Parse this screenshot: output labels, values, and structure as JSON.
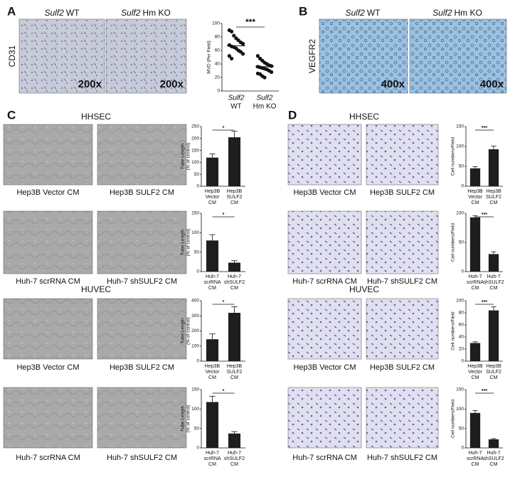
{
  "panels": {
    "A": {
      "letter": "A",
      "gene": "Sulf2",
      "columns": [
        "WT",
        "Hm KO"
      ],
      "stain": "CD31",
      "magnification": [
        "200x",
        "200x"
      ]
    },
    "B": {
      "letter": "B",
      "gene": "Sulf2",
      "columns": [
        "WT",
        "Hm KO"
      ],
      "stain": "VEGFR2",
      "magnification": [
        "400x",
        "400x"
      ]
    },
    "C": {
      "letter": "C",
      "sections": [
        "HHSEC",
        "HUVEC"
      ],
      "captions": [
        [
          "Hep3B Vector CM",
          "Hep3B SULF2 CM"
        ],
        [
          "Huh-7 scrRNA CM",
          "Huh-7 shSULF2 CM"
        ],
        [
          "Hep3B Vector CM",
          "Hep3B SULF2 CM"
        ],
        [
          "Huh-7 scrRNA CM",
          "Huh-7 shSULF2 CM"
        ]
      ]
    },
    "D": {
      "letter": "D",
      "sections": [
        "HHSEC",
        "HUVEC"
      ],
      "captions": [
        [
          "Hep3B Vector CM",
          "Hep3B SULF2 CM"
        ],
        [
          "Huh-7 scrRNA CM",
          "Huh-7 shSULF2 CM"
        ],
        [
          "Hep3B Vector CM",
          "Hep3B SULF2 CM"
        ],
        [
          "Huh-7 scrRNA CM",
          "Huh-7 shSULF2 CM"
        ]
      ]
    }
  },
  "chart_data": [
    {
      "type": "dot",
      "ylabel": [
        "MVD (Per Field)"
      ],
      "annotation": "***",
      "categories": [
        [
          "Sulf2",
          "WT"
        ],
        [
          "Sulf2",
          "Hm KO"
        ]
      ],
      "values": [
        [
          90,
          88,
          82,
          78,
          75,
          72,
          70,
          68,
          66,
          65,
          63,
          60,
          58,
          55,
          52,
          48
        ],
        [
          52,
          48,
          45,
          42,
          40,
          38,
          37,
          36,
          35,
          34,
          33,
          32,
          30,
          28,
          26,
          25,
          22,
          20
        ]
      ],
      "means": [
        67,
        36
      ],
      "ylim": [
        0,
        100
      ],
      "yticks": [
        0,
        20,
        40,
        60,
        80,
        100
      ]
    },
    {
      "type": "bar",
      "ylabel": [
        "Tube Length",
        "(% of control)"
      ],
      "annotation": "*",
      "categories": [
        [
          "Hep3B",
          "Vector",
          "CM"
        ],
        [
          "Hep3B",
          "SULF2",
          "CM"
        ]
      ],
      "values": [
        120,
        205
      ],
      "errors": [
        15,
        25
      ],
      "ylim": [
        0,
        250
      ],
      "yticks": [
        0,
        50,
        100,
        150,
        200,
        250
      ]
    },
    {
      "type": "bar",
      "ylabel": [
        "Tube Length",
        "(% of control)"
      ],
      "annotation": "*",
      "categories": [
        [
          "Huh-7",
          "scrRNA",
          "CM"
        ],
        [
          "Huh-7",
          "shSULF2",
          "CM"
        ]
      ],
      "values": [
        80,
        23
      ],
      "errors": [
        15,
        5
      ],
      "ylim": [
        0,
        150
      ],
      "yticks": [
        0,
        50,
        100,
        150
      ]
    },
    {
      "type": "bar",
      "ylabel": [
        "Tube Length",
        "(% of control)"
      ],
      "annotation": "*",
      "categories": [
        [
          "Hep3B",
          "Vector",
          "CM"
        ],
        [
          "Hep3B",
          "SULF2",
          "CM"
        ]
      ],
      "values": [
        145,
        320
      ],
      "errors": [
        35,
        40
      ],
      "ylim": [
        0,
        400
      ],
      "yticks": [
        0,
        100,
        200,
        300,
        400
      ]
    },
    {
      "type": "bar",
      "ylabel": [
        "Tube Length",
        "(% of control)"
      ],
      "annotation": "*",
      "categories": [
        [
          "Huh-7",
          "scrRNA",
          "CM"
        ],
        [
          "Huh-7",
          "shSULF2",
          "CM"
        ]
      ],
      "values": [
        118,
        37
      ],
      "errors": [
        15,
        5
      ],
      "ylim": [
        0,
        150
      ],
      "yticks": [
        0,
        50,
        100,
        150
      ]
    },
    {
      "type": "bar",
      "ylabel": [
        "Cell numbers/Field"
      ],
      "annotation": "***",
      "categories": [
        [
          "Hep3B",
          "Vector",
          "CM"
        ],
        [
          "Hep3B",
          "SULF2",
          "CM"
        ]
      ],
      "values": [
        45,
        93
      ],
      "errors": [
        4,
        8
      ],
      "ylim": [
        0,
        150
      ],
      "yticks": [
        0,
        50,
        100,
        150
      ]
    },
    {
      "type": "bar",
      "ylabel": [
        "Cell numbers/Field"
      ],
      "annotation": "***",
      "categories": [
        [
          "Huh-7",
          "scrRNA",
          "CM"
        ],
        [
          "Huh-7",
          "shSULF2",
          "CM"
        ]
      ],
      "values": [
        93,
        30
      ],
      "errors": [
        3,
        4
      ],
      "ylim": [
        0,
        100
      ],
      "yticks": [
        0,
        50,
        100
      ]
    },
    {
      "type": "bar",
      "ylabel": [
        "Cell numbers/Field"
      ],
      "annotation": "***",
      "categories": [
        [
          "Hep3B",
          "Vector",
          "CM"
        ],
        [
          "Hep3B",
          "SULF2",
          "CM"
        ]
      ],
      "values": [
        30,
        84
      ],
      "errors": [
        2,
        6
      ],
      "ylim": [
        0,
        100
      ],
      "yticks": [
        0,
        20,
        40,
        60,
        80,
        100
      ]
    },
    {
      "type": "bar",
      "ylabel": [
        "Cell numbers/Field"
      ],
      "annotation": "***",
      "categories": [
        [
          "Huh-7",
          "scrRNA",
          "CM"
        ],
        [
          "Huh-7",
          "shSULF2",
          "CM"
        ]
      ],
      "values": [
        90,
        22
      ],
      "errors": [
        6,
        2
      ],
      "ylim": [
        0,
        150
      ],
      "yticks": [
        0,
        50,
        100,
        150
      ]
    }
  ]
}
